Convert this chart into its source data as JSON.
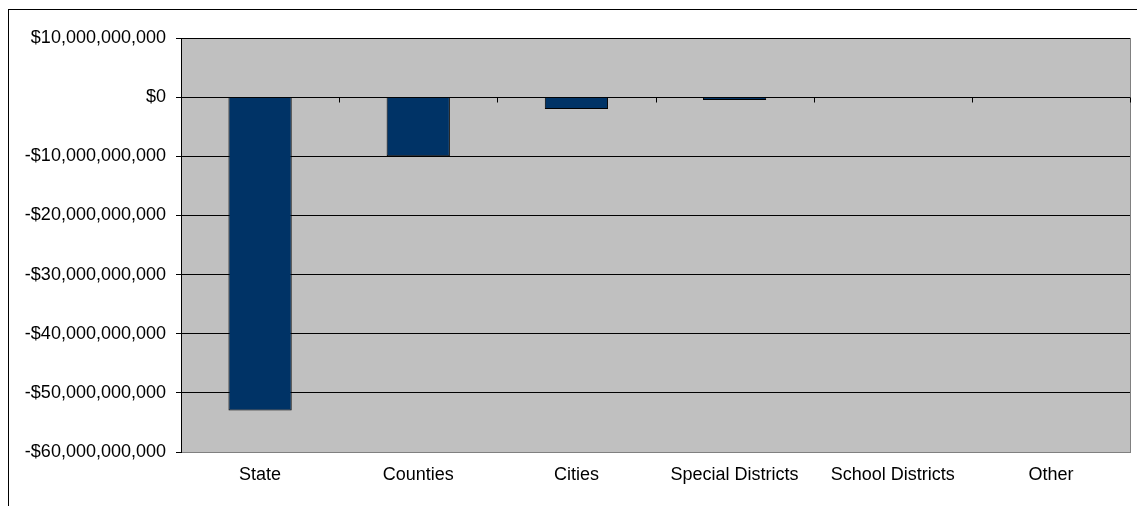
{
  "chart_data": {
    "type": "bar",
    "categories": [
      "State",
      "Counties",
      "Cities",
      "Special Districts",
      "School Districts",
      "Other"
    ],
    "values": [
      -53000000000,
      -10000000000,
      -2000000000,
      -500000000,
      0,
      0
    ],
    "color": "#003366",
    "ylim": [
      -60000000000,
      10000000000
    ],
    "yticks": [
      {
        "value": -60000000000,
        "label": "-$60,000,000,000"
      },
      {
        "value": -50000000000,
        "label": "-$50,000,000,000"
      },
      {
        "value": -40000000000,
        "label": "-$40,000,000,000"
      },
      {
        "value": -30000000000,
        "label": "-$30,000,000,000"
      },
      {
        "value": -20000000000,
        "label": "-$20,000,000,000"
      },
      {
        "value": -10000000000,
        "label": "-$10,000,000,000"
      },
      {
        "value": 0,
        "label": "$0"
      },
      {
        "value": 10000000000,
        "label": "$10,000,000,000"
      }
    ],
    "grid": "y",
    "legend": false
  }
}
